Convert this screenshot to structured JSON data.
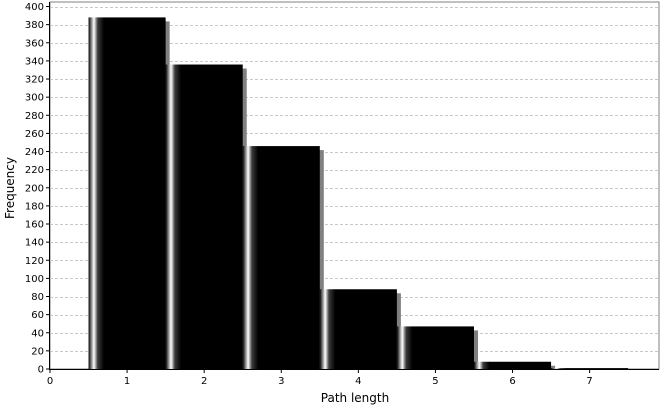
{
  "chart_data": {
    "type": "bar",
    "title": "",
    "xlabel": "Path length",
    "ylabel": "Frequency",
    "x": [
      1,
      2,
      3,
      4,
      5,
      6,
      7
    ],
    "values": [
      388,
      336,
      246,
      88,
      47,
      8,
      1
    ],
    "bin_width": 1,
    "xlim": [
      0,
      7.9
    ],
    "ylim": [
      0,
      405
    ],
    "xticks": [
      0,
      1,
      2,
      3,
      4,
      5,
      6,
      7
    ],
    "yticks": [
      0,
      20,
      40,
      60,
      80,
      100,
      120,
      140,
      160,
      180,
      200,
      220,
      240,
      260,
      280,
      300,
      320,
      340,
      360,
      380,
      400
    ],
    "grid": "horizontal dashed",
    "legend": "none",
    "colors": {
      "bar": "#000000",
      "shadow": "#808080",
      "grid": "#c8c8c8",
      "axis": "#000000"
    }
  }
}
